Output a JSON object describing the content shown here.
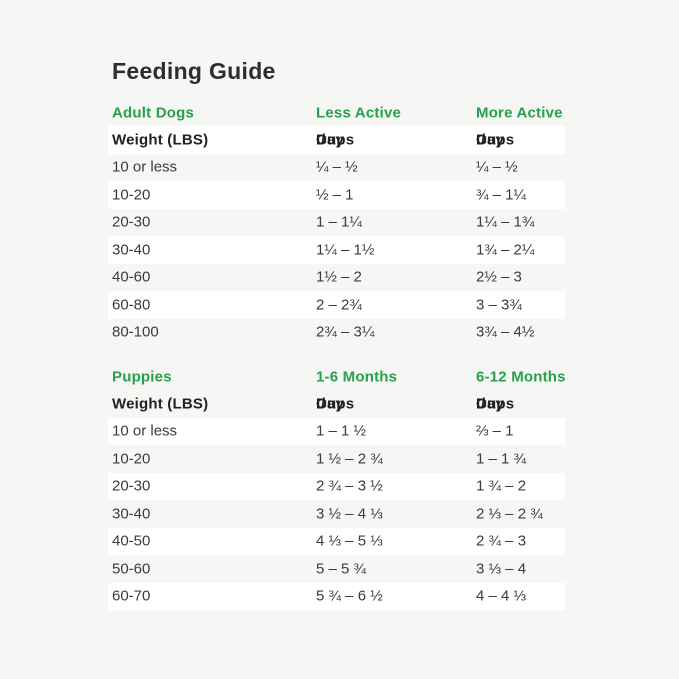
{
  "title": "Feeding Guide",
  "labels": {
    "cups": "Cups",
    "slash": "/",
    "day": "Day"
  },
  "colors": {
    "accent_green": "#28a04a",
    "background": "#f6f6f4",
    "row_highlight": "#ffffff",
    "title_text": "#2d2d2d",
    "body_text": "#3b3b3b"
  },
  "chart_data": [
    {
      "type": "table",
      "title": "Adult Dogs",
      "section_headers": [
        "Adult Dogs",
        "Less Active",
        "More Active"
      ],
      "column_headers": [
        "Weight (LBS)",
        "Cups / Day",
        "Cups / Day"
      ],
      "rows": [
        [
          "10 or less",
          "¼ – ½",
          "¼ – ½"
        ],
        [
          "10-20",
          "½ – 1",
          "¾ – 1¼"
        ],
        [
          "20-30",
          "1 – 1¼",
          "1¼ – 1¾"
        ],
        [
          "30-40",
          "1¼ – 1½",
          "1¾ – 2¼"
        ],
        [
          "40-60",
          "1½ – 2",
          "2½ – 3"
        ],
        [
          "60-80",
          "2 – 2¾",
          "3 – 3¾"
        ],
        [
          "80-100",
          "2¾ – 3¼",
          "3¾ – 4½"
        ]
      ]
    },
    {
      "type": "table",
      "title": "Puppies",
      "section_headers": [
        "Puppies",
        "1-6 Months",
        "6-12 Months"
      ],
      "column_headers": [
        "Weight (LBS)",
        "Cups / Day",
        "Cups / Day"
      ],
      "rows": [
        [
          "10 or less",
          "1 – 1 ½",
          "⅔ – 1"
        ],
        [
          "10-20",
          "1 ½ – 2 ¾",
          "1 – 1 ¾"
        ],
        [
          "20-30",
          "2 ¾ – 3 ½",
          "1 ¾ – 2"
        ],
        [
          "30-40",
          "3 ½ – 4 ⅓",
          "2 ⅓ – 2 ¾"
        ],
        [
          "40-50",
          "4 ⅓ – 5 ⅓",
          "2 ¾ – 3"
        ],
        [
          "50-60",
          "5 – 5 ¾",
          "3 ⅓ – 4"
        ],
        [
          "60-70",
          "5 ¾ – 6 ½",
          "4 – 4 ⅓"
        ]
      ]
    }
  ]
}
